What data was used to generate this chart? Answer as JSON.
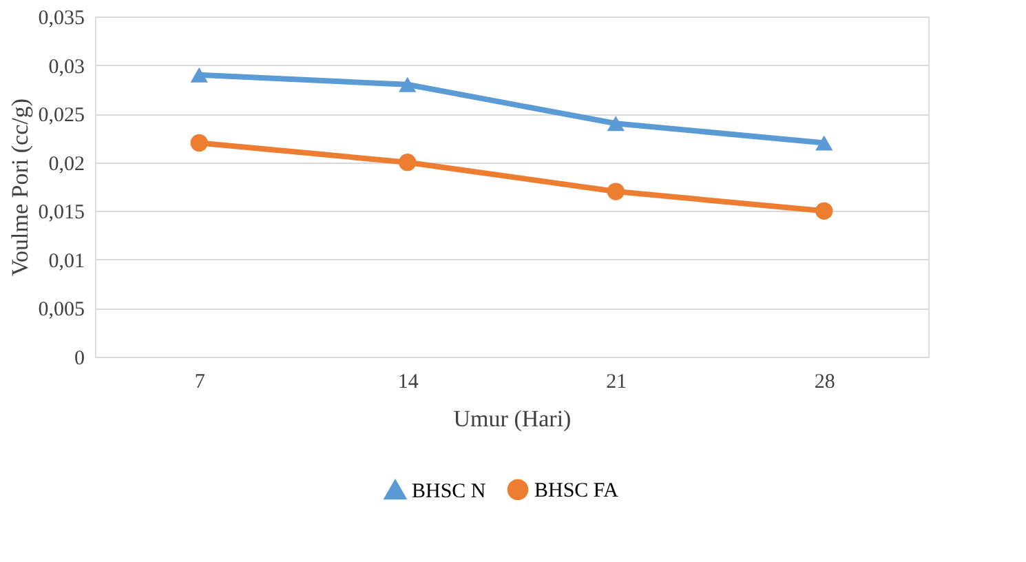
{
  "chart_data": {
    "type": "line",
    "xlabel": "Umur (Hari)",
    "ylabel": "Voulme Pori (cc/g)",
    "categories": [
      "7",
      "14",
      "21",
      "28"
    ],
    "series": [
      {
        "name": "BHSC N",
        "color": "#5b9bd5",
        "marker": "triangle",
        "values": [
          0.029,
          0.028,
          0.024,
          0.022
        ]
      },
      {
        "name": "BHSC FA",
        "color": "#ed7d31",
        "marker": "circle",
        "values": [
          0.022,
          0.02,
          0.017,
          0.015
        ]
      }
    ],
    "ylim": [
      0,
      0.035
    ],
    "yticks": [
      0,
      {
        "value": 0.005,
        "label": "0,005"
      },
      {
        "value": 0.01,
        "label": "0,01"
      },
      {
        "value": 0.015,
        "label": "0,015"
      },
      {
        "value": 0.02,
        "label": "0,02"
      },
      {
        "value": 0.025,
        "label": "0,025"
      },
      {
        "value": 0.03,
        "label": "0,03"
      },
      {
        "value": 0.035,
        "label": "0,035"
      }
    ],
    "grid": "y",
    "legend": "bottom",
    "line_style": "solid"
  }
}
